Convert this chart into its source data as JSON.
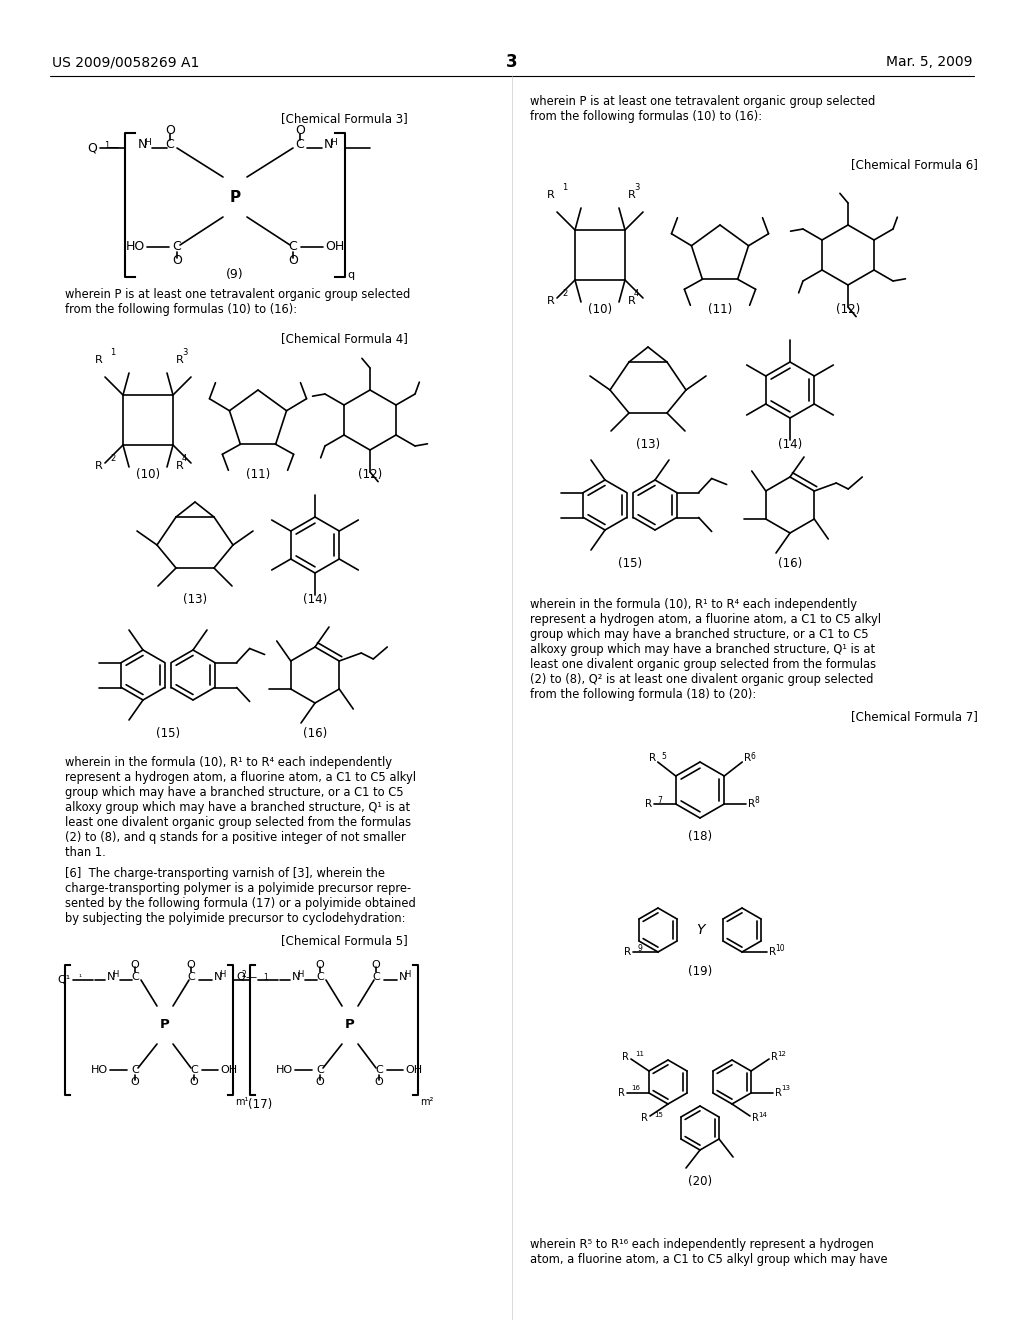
{
  "bg_color": "#ffffff",
  "header_left": "US 2009/0058269 A1",
  "header_center": "3",
  "header_right": "Mar. 5, 2009"
}
